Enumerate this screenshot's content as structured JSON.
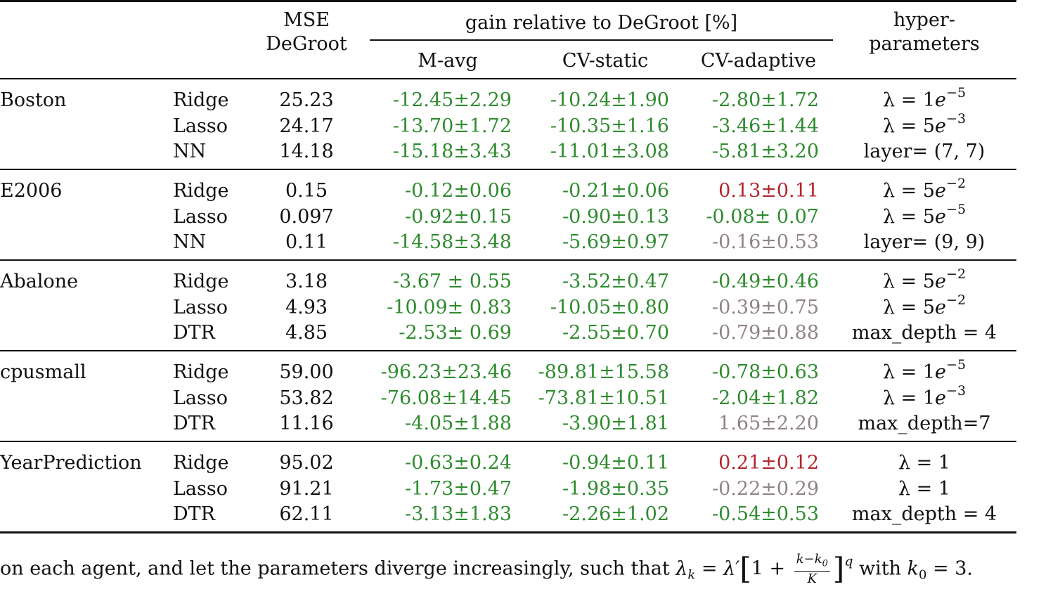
{
  "header": {
    "mse_line1": "MSE",
    "mse_line2": "DeGroot",
    "gain_title": "gain relative to DeGroot [%]",
    "col_mavg": "M-avg",
    "col_cvstatic": "CV-static",
    "col_cvadaptive": "CV-adaptive",
    "hyper_line1": "hyper-",
    "hyper_line2": "parameters"
  },
  "colors": {
    "green": "#2e8b2e",
    "red": "#b3262e",
    "grey": "#8f8383"
  },
  "groups": [
    {
      "dataset": "Boston",
      "rows": [
        {
          "model": "Ridge",
          "mse": "25.23",
          "mavg": "-12.45±2.29",
          "cvs": "-10.24±1.90",
          "cva": "-2.80±1.72",
          "cva_color": "green",
          "hyper_text": "λ = 1",
          "hyper_var": "e",
          "hyper_sup": "−5"
        },
        {
          "model": "Lasso",
          "mse": "24.17",
          "mavg": "-13.70±1.72",
          "cvs": "-10.35±1.16",
          "cva": "-3.46±1.44",
          "cva_color": "green",
          "hyper_text": "λ = 5",
          "hyper_var": "e",
          "hyper_sup": "−3"
        },
        {
          "model": "NN",
          "mse": "14.18",
          "mavg": "-15.18±3.43",
          "cvs": "-11.01±3.08",
          "cva": "-5.81±3.20",
          "cva_color": "green",
          "hyper_text": "layer= (7, 7)",
          "hyper_var": "",
          "hyper_sup": ""
        }
      ]
    },
    {
      "dataset": "E2006",
      "rows": [
        {
          "model": "Ridge",
          "mse": "0.15",
          "mavg": "-0.12±0.06",
          "cvs": "-0.21±0.06",
          "cva": "0.13±0.11",
          "cva_color": "red",
          "hyper_text": "λ = 5",
          "hyper_var": "e",
          "hyper_sup": "−2"
        },
        {
          "model": "Lasso",
          "mse": "0.097",
          "mavg": "-0.92±0.15",
          "cvs": "-0.90±0.13",
          "cva": "-0.08± 0.07",
          "cva_color": "green",
          "hyper_text": "λ = 5",
          "hyper_var": "e",
          "hyper_sup": "−5"
        },
        {
          "model": "NN",
          "mse": "0.11",
          "mavg": "-14.58±3.48",
          "cvs": "-5.69±0.97",
          "cva": "-0.16±0.53",
          "cva_color": "grey",
          "hyper_text": "layer= (9, 9)",
          "hyper_var": "",
          "hyper_sup": ""
        }
      ]
    },
    {
      "dataset": "Abalone",
      "rows": [
        {
          "model": "Ridge",
          "mse": "3.18",
          "mavg": "-3.67 ± 0.55",
          "cvs": "-3.52±0.47",
          "cva": "-0.49±0.46",
          "cva_color": "green",
          "hyper_text": "λ = 5",
          "hyper_var": "e",
          "hyper_sup": "−2"
        },
        {
          "model": "Lasso",
          "mse": "4.93",
          "mavg": "-10.09± 0.83",
          "cvs": "-10.05±0.80",
          "cva": "-0.39±0.75",
          "cva_color": "grey",
          "hyper_text": "λ = 5",
          "hyper_var": "e",
          "hyper_sup": "−2"
        },
        {
          "model": "DTR",
          "mse": "4.85",
          "mavg": "-2.53± 0.69",
          "cvs": "-2.55±0.70",
          "cva": "-0.79±0.88",
          "cva_color": "grey",
          "hyper_text": "max_depth = 4",
          "hyper_var": "",
          "hyper_sup": ""
        }
      ]
    },
    {
      "dataset": "cpusmall",
      "rows": [
        {
          "model": "Ridge",
          "mse": "59.00",
          "mavg": "-96.23±23.46",
          "cvs": "-89.81±15.58",
          "cva": "-0.78±0.63",
          "cva_color": "green",
          "hyper_text": "λ = 1",
          "hyper_var": "e",
          "hyper_sup": "−5"
        },
        {
          "model": "Lasso",
          "mse": "53.82",
          "mavg": "-76.08±14.45",
          "cvs": "-73.81±10.51",
          "cva": "-2.04±1.82",
          "cva_color": "green",
          "hyper_text": "λ = 1",
          "hyper_var": "e",
          "hyper_sup": "−3"
        },
        {
          "model": "DTR",
          "mse": "11.16",
          "mavg": "-4.05±1.88",
          "cvs": "-3.90±1.81",
          "cva": "1.65±2.20",
          "cva_color": "grey",
          "hyper_text": "max_depth=7",
          "hyper_var": "",
          "hyper_sup": ""
        }
      ]
    },
    {
      "dataset": "YearPrediction",
      "rows": [
        {
          "model": "Ridge",
          "mse": "95.02",
          "mavg": "-0.63±0.24",
          "cvs": "-0.94±0.11",
          "cva": "0.21±0.12",
          "cva_color": "red",
          "hyper_text": "λ = 1",
          "hyper_var": "",
          "hyper_sup": ""
        },
        {
          "model": "Lasso",
          "mse": "91.21",
          "mavg": "-1.73±0.47",
          "cvs": "-1.98±0.35",
          "cva": "-0.22±0.29",
          "cva_color": "grey",
          "hyper_text": "λ = 1",
          "hyper_var": "",
          "hyper_sup": ""
        },
        {
          "model": "DTR",
          "mse": "62.11",
          "mavg": "-3.13±1.83",
          "cvs": "-2.26±1.02",
          "cva": "-0.54±0.53",
          "cva_color": "green",
          "hyper_text": "max_depth = 4",
          "hyper_var": "",
          "hyper_sup": ""
        }
      ]
    }
  ],
  "paragraph": {
    "before": "on each agent, and let the parameters diverge increasingly, such that ",
    "lambda_k": "λ",
    "sub_k": "k",
    "equals": " = ",
    "lambda_prime": "λ′",
    "open_bracket": "[",
    "one_plus": "1 + ",
    "frac_num": "k−k",
    "frac_num_sub": "0",
    "frac_den": "K",
    "close_bracket": "]",
    "exp_q": "q",
    "with": " with ",
    "k0_var": "k",
    "k0_sub": "0",
    "after": " = 3."
  }
}
